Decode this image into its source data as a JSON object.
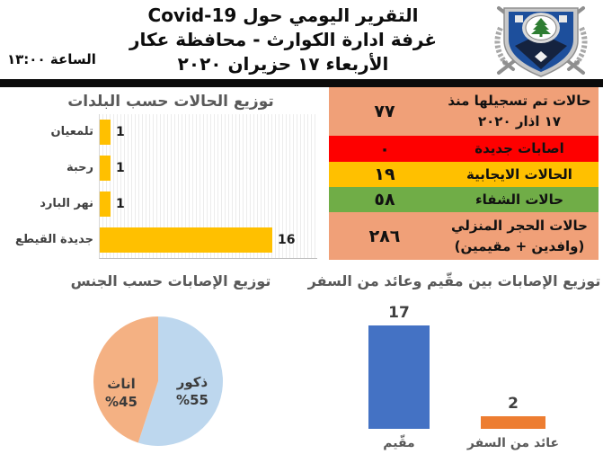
{
  "header": {
    "title_line1": "التقرير اليومي حول Covid-19",
    "title_line2": "غرفة ادارة الكوارث - محافظة عكار",
    "title_line3": "الأربعاء ١٧ حزيران ٢٠٢٠",
    "time_label": "الساعة ١٣:٠٠"
  },
  "stats_table": {
    "rows": [
      {
        "label": "حالات تم تسجيلها منذ ١٧ اذار ٢٠٢٠",
        "value": "٧٧",
        "bg": "#F0A078"
      },
      {
        "label": "اصابات جديدة",
        "value": "٠",
        "bg": "#FE0000"
      },
      {
        "label": "الحالات الايجابية",
        "value": "١٩",
        "bg": "#FFC000"
      },
      {
        "label": "حالات الشفاء",
        "value": "٥٨",
        "bg": "#70AD47"
      },
      {
        "label": "حالات الحجر المنزلي (وافدين + مقيمين)",
        "value": "٢٨٦",
        "bg": "#F0A078"
      }
    ]
  },
  "chart_data": [
    {
      "type": "bar",
      "orientation": "horizontal",
      "title": "توزيع الحالات حسب البلدات",
      "categories": [
        "تلمعيان",
        "رحبة",
        "نهر البارد",
        "جديدة القيطع"
      ],
      "values": [
        1,
        1,
        1,
        16
      ],
      "bar_color": "#FFC000",
      "xlim": [
        0,
        20
      ],
      "grid": true
    },
    {
      "type": "pie",
      "title": "توزيع الإصابات حسب الجنس",
      "labels": [
        "ذكور",
        "اناث"
      ],
      "values": [
        55,
        45
      ],
      "percent_labels": [
        "%55",
        "%45"
      ],
      "colors": [
        "#BDD7EE",
        "#F4B183"
      ],
      "start_angle_deg": 0,
      "direction": "clockwise",
      "legend": "none"
    },
    {
      "type": "bar",
      "orientation": "vertical",
      "title": "توزيع الإصابات بين مقّيم وعائد من السفر",
      "categories": [
        "مقّيم",
        "عائد من السفر"
      ],
      "values": [
        17,
        2
      ],
      "colors": [
        "#4472C4",
        "#ED7D31"
      ],
      "ylim": [
        0,
        18
      ],
      "grid": false
    }
  ]
}
